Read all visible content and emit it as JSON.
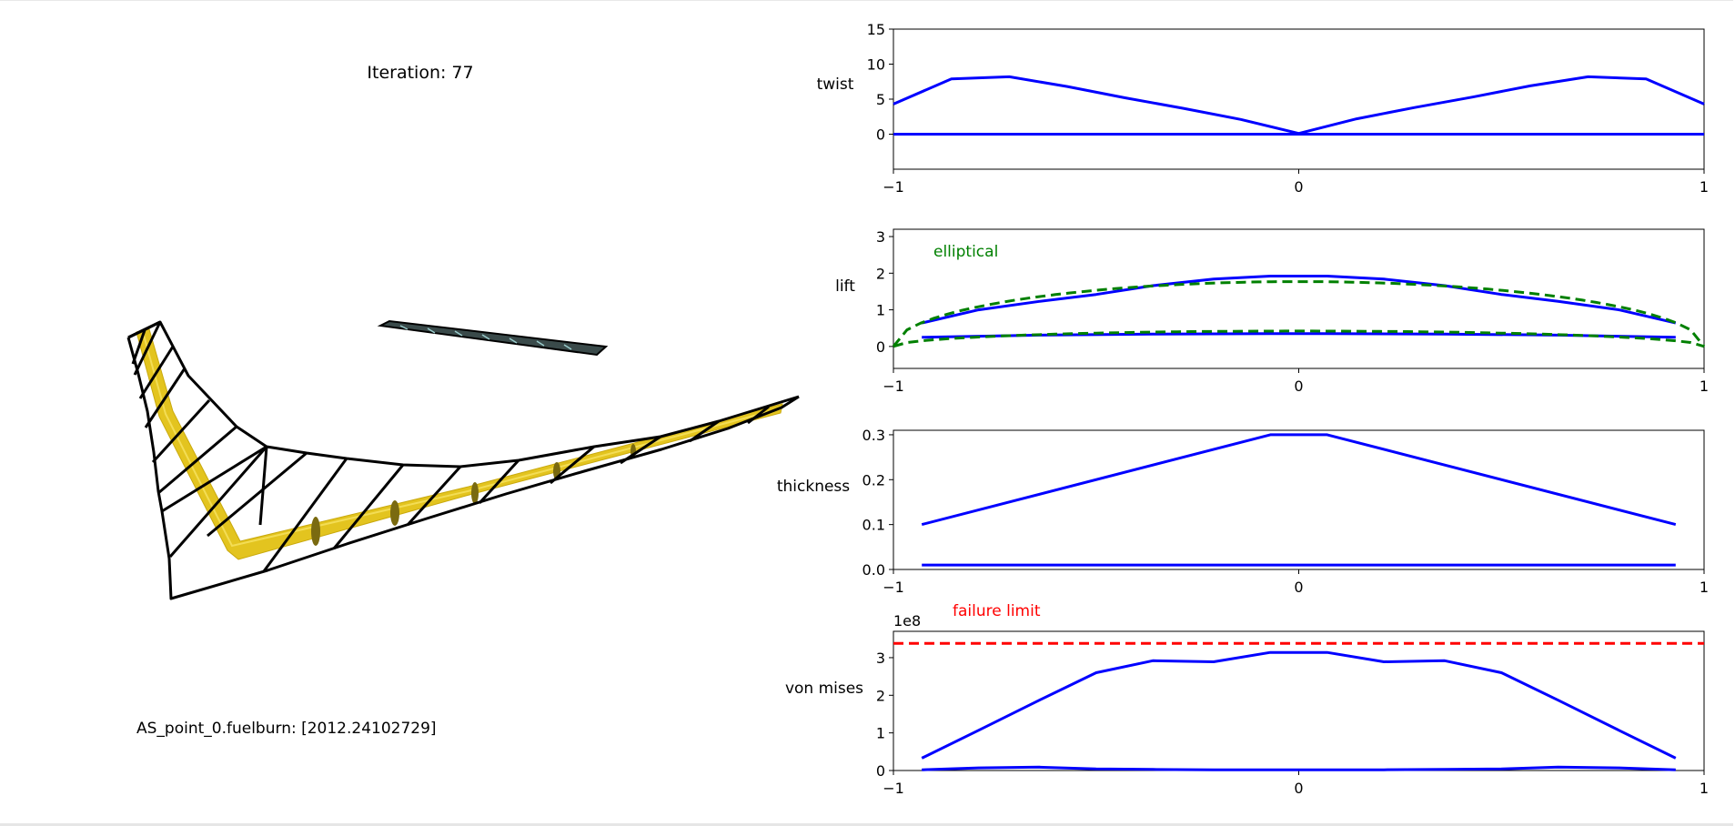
{
  "iteration_text": "Iteration: 77",
  "fuelburn_text": "AS_point_0.fuelburn: [2012.24102729]",
  "colors": {
    "series": "#0000ff",
    "elliptical": "#008000",
    "failure_limit": "#ff0000",
    "wing_mesh": "#000000",
    "spar": "#e6c81e"
  },
  "chart_data": [
    {
      "type": "line",
      "ylabel": "twist",
      "xlim": [
        -1,
        1
      ],
      "ylim": [
        -5,
        15
      ],
      "yticks": [
        0,
        5,
        10,
        15
      ],
      "xticks": [
        -1,
        0,
        1
      ],
      "ytick_labels": [
        "0",
        "5",
        "10",
        "15"
      ],
      "xtick_labels": [
        "−1",
        "0",
        "1"
      ],
      "series": [
        {
          "x": [
            -1,
            -0.857,
            -0.714,
            -0.571,
            -0.429,
            -0.286,
            -0.143,
            0,
            0.143,
            0.286,
            0.429,
            0.571,
            0.714,
            0.857,
            1
          ],
          "y": [
            4.3,
            7.9,
            8.2,
            6.8,
            5.2,
            3.7,
            2.1,
            0.1,
            2.2,
            3.8,
            5.3,
            6.9,
            8.2,
            7.9,
            4.3
          ]
        },
        {
          "x": [
            -1,
            1
          ],
          "y": [
            0,
            0
          ]
        }
      ]
    },
    {
      "type": "line",
      "ylabel": "lift",
      "xlim": [
        -1,
        1
      ],
      "ylim": [
        -0.6,
        3.2
      ],
      "yticks": [
        0,
        1,
        2,
        3
      ],
      "xticks": [
        -1,
        0,
        1
      ],
      "ytick_labels": [
        "0",
        "1",
        "2",
        "3"
      ],
      "xtick_labels": [
        "−1",
        "0",
        "1"
      ],
      "annotation": "elliptical",
      "series": [
        {
          "x": [
            -0.93,
            -0.79,
            -0.64,
            -0.5,
            -0.36,
            -0.21,
            -0.07,
            0.07,
            0.21,
            0.36,
            0.5,
            0.64,
            0.79,
            0.93
          ],
          "y": [
            0.64,
            1.0,
            1.23,
            1.42,
            1.66,
            1.84,
            1.92,
            1.92,
            1.84,
            1.66,
            1.42,
            1.23,
            1.0,
            0.64
          ]
        },
        {
          "x": [
            -0.93,
            -0.64,
            -0.36,
            -0.07,
            0.07,
            0.36,
            0.64,
            0.93
          ],
          "y": [
            0.25,
            0.31,
            0.34,
            0.35,
            0.35,
            0.34,
            0.31,
            0.25
          ]
        },
        {
          "style": "dashed",
          "elliptical": true,
          "peak": 1.77
        },
        {
          "style": "dashed",
          "elliptical": true,
          "peak": 0.42
        }
      ]
    },
    {
      "type": "line",
      "ylabel": "thickness",
      "xlim": [
        -1,
        1
      ],
      "ylim": [
        0,
        0.31
      ],
      "yticks": [
        0,
        0.1,
        0.2,
        0.3
      ],
      "xticks": [
        -1,
        0,
        1
      ],
      "ytick_labels": [
        "0.0",
        "0.1",
        "0.2",
        "0.3"
      ],
      "xtick_labels": [
        "−1",
        "0",
        "1"
      ],
      "series": [
        {
          "x": [
            -0.93,
            -0.07,
            0.07,
            0.93
          ],
          "y": [
            0.1,
            0.3,
            0.3,
            0.1
          ]
        },
        {
          "x": [
            -0.93,
            0.93
          ],
          "y": [
            0.01,
            0.01
          ]
        }
      ]
    },
    {
      "type": "line",
      "ylabel": "von mises",
      "offset_text": "1e8",
      "annotation": "failure limit",
      "failure_limit": 3.38,
      "xlim": [
        -1,
        1
      ],
      "ylim": [
        0,
        3.7
      ],
      "yticks": [
        0,
        1,
        2,
        3
      ],
      "xticks": [
        -1,
        0,
        1
      ],
      "ytick_labels": [
        "0",
        "1",
        "2",
        "3"
      ],
      "xtick_labels": [
        "−1",
        "0",
        "1"
      ],
      "series": [
        {
          "x": [
            -0.93,
            -0.79,
            -0.64,
            -0.5,
            -0.36,
            -0.21,
            -0.07,
            0.07,
            0.21,
            0.36,
            0.5,
            0.64,
            0.79,
            0.93
          ],
          "y": [
            0.33,
            1.07,
            1.87,
            2.6,
            2.92,
            2.89,
            3.14,
            3.14,
            2.89,
            2.92,
            2.6,
            1.87,
            1.07,
            0.33
          ]
        },
        {
          "x": [
            -0.93,
            -0.79,
            -0.64,
            -0.5,
            -0.36,
            -0.21,
            -0.07,
            0.07,
            0.21,
            0.36,
            0.5,
            0.64,
            0.79,
            0.93
          ],
          "y": [
            0.02,
            0.07,
            0.09,
            0.04,
            0.03,
            0.02,
            0.02,
            0.02,
            0.02,
            0.03,
            0.04,
            0.09,
            0.07,
            0.02
          ]
        }
      ]
    }
  ]
}
